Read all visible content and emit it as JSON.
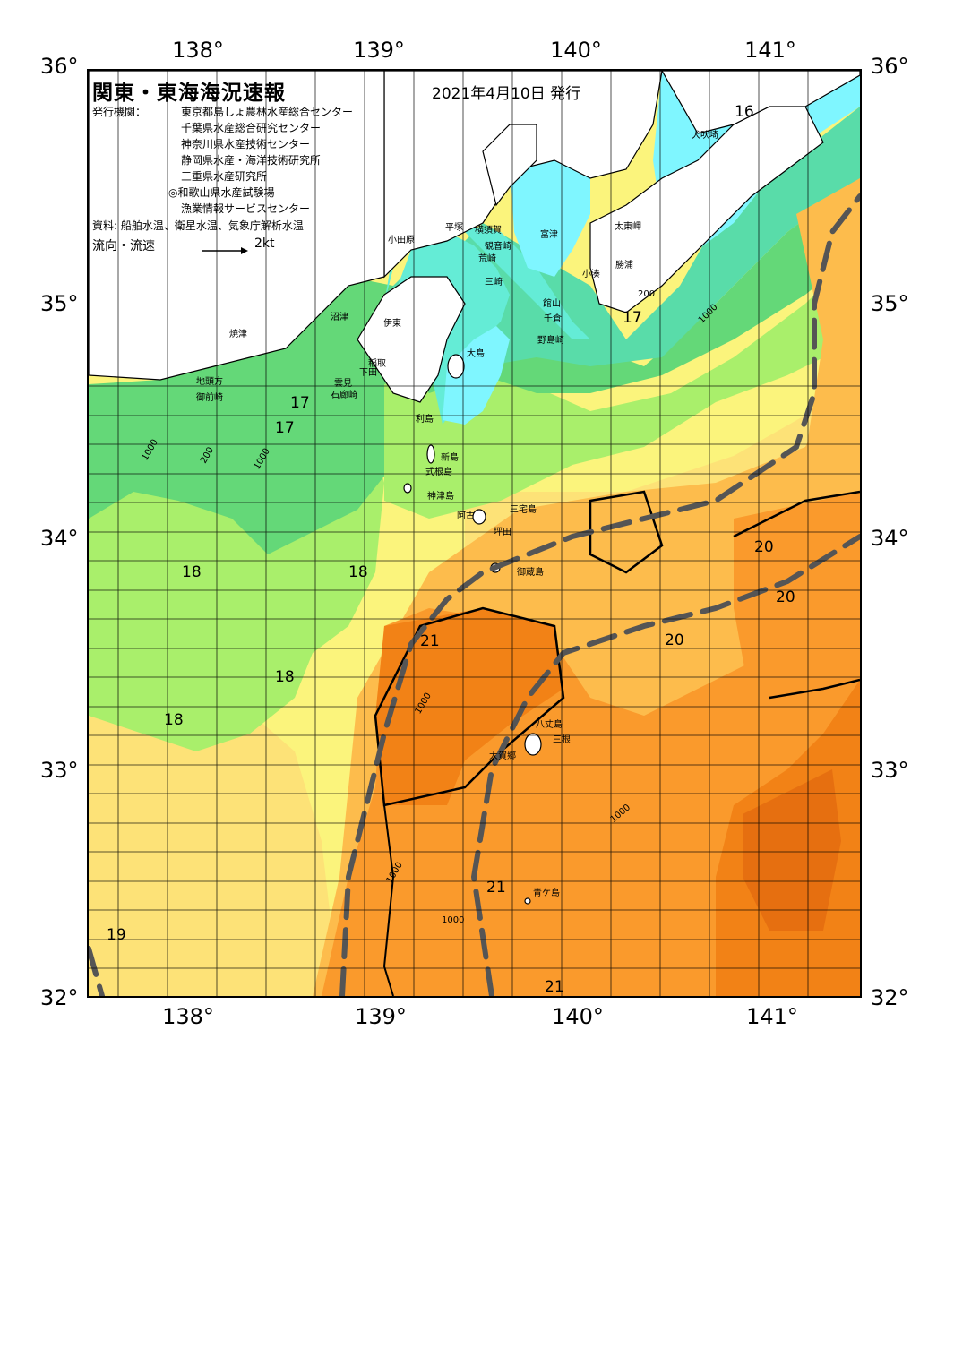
{
  "title": "関東・東海海況速報",
  "issue_date": "2021年4月10日 発行",
  "issuers": {
    "label": "発行機関：",
    "list": [
      "東京都島しょ農林水産総合センター",
      "千葉県水産総合研究センター",
      "神奈川県水産技術センター",
      "静岡県水産・海洋技術研究所",
      "三重県水産研究所",
      "◎和歌山県水産試験場",
      "漁業情報サービスセンター"
    ]
  },
  "sources": "資料: 船舶水温、衛星水温、気象庁解析水温",
  "current_legend": {
    "label": "流向・流速",
    "scale": "2kt"
  },
  "axes": {
    "lon_top": [
      "138°",
      "139°",
      "140°",
      "141°"
    ],
    "lon_bottom": [
      "138°",
      "139°",
      "140°",
      "141°"
    ],
    "lat_left": [
      "36°",
      "35°",
      "34°",
      "33°",
      "32°"
    ],
    "lat_right": [
      "36°",
      "35°",
      "34°",
      "33°",
      "32°"
    ]
  },
  "colors": {
    "cyan": "#7ff6ff",
    "aqua": "#64ecd6",
    "green_teal": "#59dca9",
    "green": "#64d878",
    "light_green": "#a9ef6b",
    "yellow_light": "#fbf47c",
    "yellow": "#fde277",
    "light_orange": "#fdbc4c",
    "orange": "#fa9a2c",
    "dark_orange": "#f28216",
    "deep_orange": "#e66f10",
    "kuroshio_axis": "#555555"
  },
  "place_names": [
    "犬吠埼",
    "太東岬",
    "勝浦",
    "小湊",
    "富津",
    "観音崎",
    "横須賀",
    "荒崎",
    "平塚",
    "小田原",
    "三崎",
    "館山",
    "千倉",
    "野島崎",
    "大島",
    "伊東",
    "沼津",
    "焼津",
    "稲取",
    "下田",
    "石廊崎",
    "雲見",
    "地頭方",
    "御前崎",
    "利島",
    "新島",
    "式根島",
    "神津島",
    "三宅島",
    "阿古",
    "坪田",
    "御蔵島",
    "八丈島",
    "三根",
    "大賀郷",
    "青ケ島"
  ],
  "temperature_labels": [
    "16",
    "17",
    "17",
    "17",
    "18",
    "18",
    "18",
    "18",
    "19",
    "20",
    "20",
    "20",
    "21",
    "21",
    "21"
  ],
  "depth_labels": [
    "1000",
    "200"
  ]
}
